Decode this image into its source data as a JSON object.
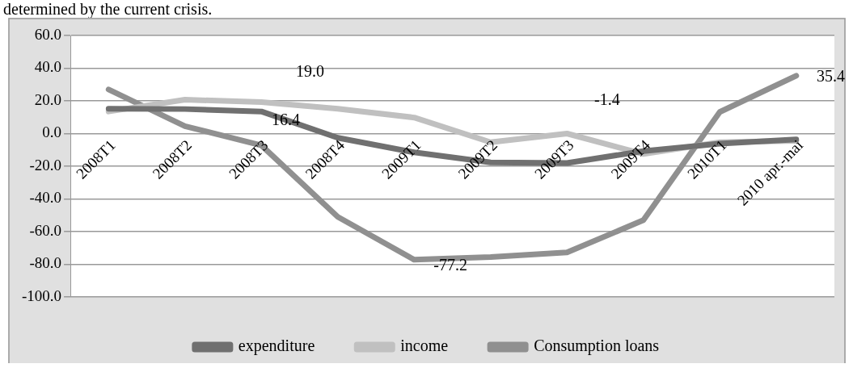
{
  "chart_data": {
    "type": "line",
    "categories": [
      "2008T1",
      "2008T2",
      "2008T3",
      "2008T4",
      "2009T1",
      "2009T2",
      "2009T3",
      "2009T4",
      "2010T1",
      "2010 apr.-mai"
    ],
    "series": [
      {
        "name": "expenditure",
        "color": "#707070",
        "values": [
          15.2,
          15.0,
          13.5,
          -2.6,
          -11.5,
          -17.7,
          -18.0,
          -10.7,
          -6.2,
          -3.6
        ]
      },
      {
        "name": "income",
        "color": "#c0c0c0",
        "values": [
          13.5,
          20.7,
          19.3,
          15.2,
          9.8,
          -5.3,
          0.0,
          -12.5,
          -5.3,
          -4.5
        ]
      },
      {
        "name": "Consumption loans",
        "color": "#909090",
        "values": [
          27.0,
          4.5,
          -7.2,
          -51.0,
          -77.2,
          -75.5,
          -72.7,
          -53.0,
          13.2,
          35.4
        ]
      }
    ],
    "ylim": [
      -100,
      60
    ],
    "yticks": [
      {
        "value": -100,
        "label": "-100.0"
      },
      {
        "value": -80,
        "label": "-80.0"
      },
      {
        "value": -60,
        "label": "-60.0"
      },
      {
        "value": -40,
        "label": "-40.0"
      },
      {
        "value": -20,
        "label": "-20.0"
      },
      {
        "value": 0,
        "label": "0.0"
      },
      {
        "value": 20,
        "label": "20.0"
      },
      {
        "value": 40,
        "label": "40.0"
      },
      {
        "value": 60,
        "label": "60.0"
      }
    ],
    "grid": "y",
    "legend": "bottom",
    "marker": "none",
    "line_style": "solid",
    "annotations": [
      "determined by the current crisis.",
      "19.0",
      "16.4",
      "-1.4",
      {
        "text": "-77.2",
        "x": "2009T1",
        "y": -77.2
      },
      "35.4"
    ]
  }
}
